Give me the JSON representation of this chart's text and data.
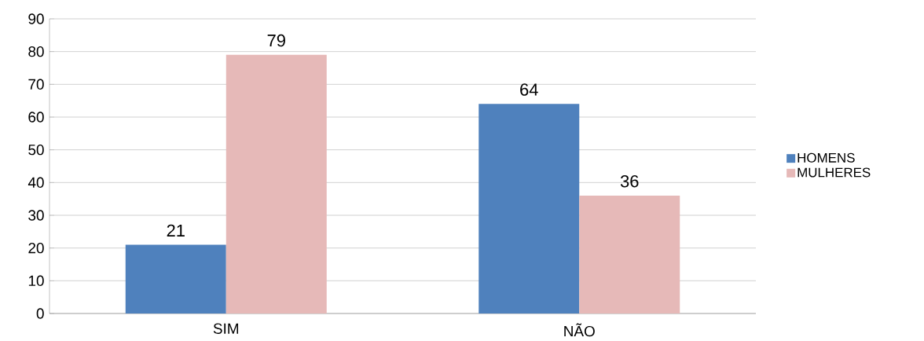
{
  "chart_data": {
    "type": "bar",
    "categories": [
      "SIM",
      "NÃO"
    ],
    "series": [
      {
        "name": "HOMENS",
        "color": "#4f81bd",
        "values": [
          21,
          64
        ]
      },
      {
        "name": "MULHERES",
        "color": "#e6b9b8",
        "values": [
          79,
          36
        ]
      }
    ],
    "ylim": [
      0,
      90
    ],
    "yticks": [
      0,
      10,
      20,
      30,
      40,
      50,
      60,
      70,
      80,
      90
    ],
    "grid": "y",
    "legend": "right",
    "data_labels": true
  }
}
